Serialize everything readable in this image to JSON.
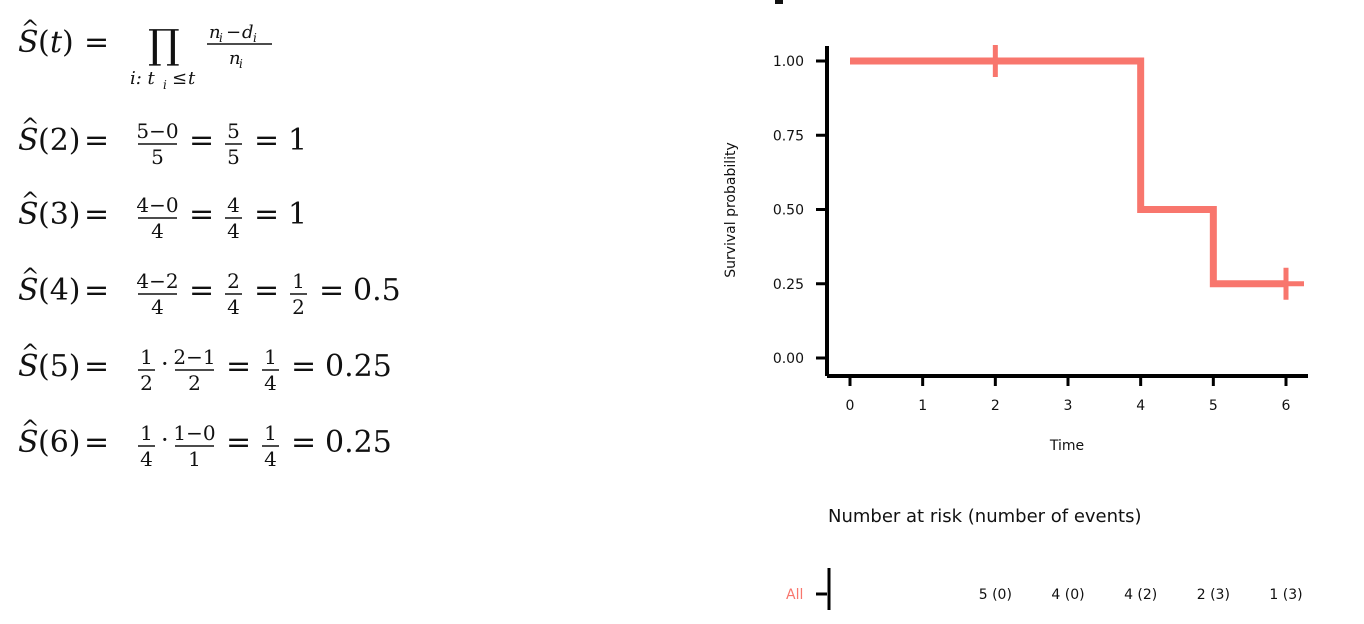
{
  "formulas": {
    "lines": [
      {
        "label": "Ŝ(t) = Π_{i: t_i ≤ t} (n_i − d_i)/n_i"
      },
      {
        "t": "2",
        "a": "5−0",
        "b": "5",
        "c": "5",
        "d": "5",
        "result": "1"
      },
      {
        "t": "3",
        "a": "4−0",
        "b": "4",
        "c": "4",
        "d": "4",
        "result": "1"
      },
      {
        "t": "4",
        "a": "4−2",
        "b": "4",
        "c": "2",
        "d": "4",
        "e": "1",
        "f": "2",
        "result": "0.5"
      },
      {
        "t": "5",
        "p": "1",
        "q": "2",
        "a": "2−1",
        "b": "2",
        "c": "1",
        "d": "4",
        "result": "0.25"
      },
      {
        "t": "6",
        "p": "1",
        "q": "4",
        "a": "1−0",
        "b": "1",
        "c": "1",
        "d": "4",
        "result": "0.25"
      }
    ]
  },
  "chart_data": {
    "type": "line",
    "step": true,
    "xlabel": "Time",
    "ylabel": "Survival probability",
    "xlim": [
      0,
      6
    ],
    "ylim": [
      0,
      1
    ],
    "x_ticks": [
      "0",
      "1",
      "2",
      "3",
      "4",
      "5",
      "6"
    ],
    "y_ticks": [
      "0.00",
      "0.25",
      "0.50",
      "0.75",
      "1.00"
    ],
    "series": [
      {
        "color": "#f8766d",
        "x": [
          0,
          4,
          5,
          6
        ],
        "y": [
          1.0,
          0.5,
          0.25,
          0.25
        ],
        "censor_times": [
          2,
          6
        ],
        "censor_values": [
          1.0,
          0.25
        ]
      }
    ],
    "risk_table": {
      "title": "Number at risk (number of events)",
      "strata_label": "All",
      "times": [
        2,
        3,
        4,
        5,
        6
      ],
      "values": [
        "5 (0)",
        "4 (0)",
        "4 (2)",
        "2 (3)",
        "1 (3)"
      ]
    }
  }
}
